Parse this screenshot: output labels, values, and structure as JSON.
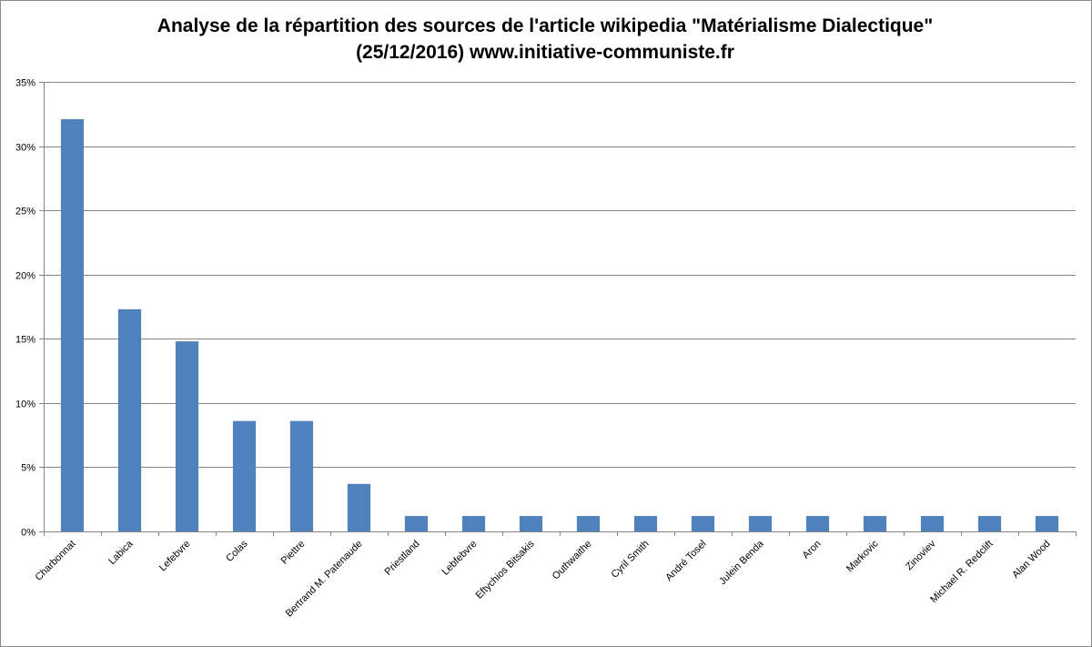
{
  "chart_data": {
    "type": "bar",
    "title": "Analyse de la répartition des sources de l'article wikipedia \"Matérialisme Dialectique\"",
    "subtitle": "(25/12/2016) www.initiative-communiste.fr",
    "categories": [
      "Charbonnat",
      "Labica",
      "Lefebvre",
      "Colas",
      "Piettre",
      "Bertrand M. Patenaude",
      "Priestland",
      "Lebfebvre",
      "Eftychios Bitsakis",
      "Outhwaithe",
      "Cyril Smith",
      "André Tosel",
      "Julein Benda",
      "Aron",
      "Markovic",
      "Zinoviev",
      "Michael R. Redclift",
      "Alan Wood"
    ],
    "values": [
      32.1,
      17.3,
      14.8,
      8.6,
      8.6,
      3.7,
      1.2,
      1.2,
      1.2,
      1.2,
      1.2,
      1.2,
      1.2,
      1.2,
      1.2,
      1.2,
      1.2,
      1.2
    ],
    "ylim": [
      0,
      35
    ],
    "yticks": [
      0,
      5,
      10,
      15,
      20,
      25,
      30,
      35
    ],
    "ytick_labels": [
      "0%",
      "5%",
      "10%",
      "15%",
      "20%",
      "25%",
      "30%",
      "35%"
    ],
    "xlabel": "",
    "ylabel": "",
    "grid": "horizontal",
    "legend": "none",
    "bar_color": "#4f81bd",
    "grid_color": "#868686"
  }
}
